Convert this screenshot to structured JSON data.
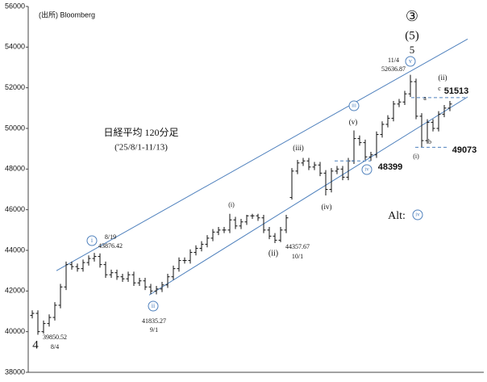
{
  "chart_data": {
    "type": "ohlc",
    "title": "日経平均 120分足",
    "subtitle": "('25/8/1-11/13)",
    "source": "(出所) Bloomberg",
    "color": "#111111",
    "channel_color": "#4f81bd",
    "level_color": "#1f3864",
    "ylim": [
      38000,
      56000
    ],
    "yticks": [
      38000,
      40000,
      42000,
      44000,
      46000,
      48000,
      50000,
      52000,
      54000,
      56000
    ],
    "open": [
      40800,
      40900,
      40000,
      40400,
      40700,
      41300,
      42200,
      43300,
      43200,
      43100,
      43400,
      43600,
      43700,
      43300,
      42800,
      42900,
      42700,
      42600,
      42800,
      42400,
      42500,
      42200,
      42000,
      42100,
      42300,
      42700,
      43100,
      43500,
      43500,
      43900,
      44100,
      44300,
      44600,
      44900,
      45000,
      45000,
      45500,
      45200,
      45400,
      45700,
      45700,
      45600,
      45000,
      44700,
      44500,
      45000,
      46600,
      47900,
      48300,
      48400,
      48100,
      48200,
      47800,
      47000,
      47900,
      48000,
      47600,
      48400,
      49500,
      49300,
      48600,
      48700,
      49700,
      50200,
      50500,
      51200,
      51300,
      51700,
      52300,
      50600,
      49400,
      50300,
      50000,
      50700,
      51000
    ],
    "high": [
      41050,
      41050,
      40550,
      40850,
      41450,
      42350,
      43450,
      43450,
      43350,
      43550,
      43750,
      43876,
      43850,
      43450,
      43050,
      43050,
      42850,
      42950,
      42950,
      42650,
      42650,
      42350,
      42250,
      42450,
      42850,
      43250,
      43650,
      43650,
      44050,
      44250,
      44450,
      44750,
      45050,
      45150,
      45150,
      45800,
      45650,
      45550,
      45750,
      45800,
      45800,
      45750,
      45150,
      44850,
      45150,
      45750,
      48050,
      48450,
      48550,
      48550,
      48350,
      48350,
      47950,
      48050,
      48150,
      48150,
      48550,
      49900,
      49650,
      49450,
      48850,
      49850,
      50350,
      50650,
      51350,
      51450,
      51850,
      52636,
      52450,
      50750,
      50450,
      50450,
      50850,
      51150,
      51350
    ],
    "low": [
      40650,
      39850,
      39900,
      40250,
      40550,
      41150,
      42050,
      43050,
      42950,
      42950,
      43250,
      43450,
      43150,
      42650,
      42650,
      42550,
      42450,
      42450,
      42250,
      42250,
      42050,
      41850,
      41835,
      41950,
      42150,
      42550,
      42950,
      43350,
      43350,
      43750,
      43950,
      44150,
      44450,
      44750,
      44850,
      44850,
      45050,
      45050,
      45250,
      45550,
      45450,
      44850,
      44550,
      44357,
      44400,
      44850,
      46500,
      47750,
      48150,
      47950,
      47950,
      47650,
      46700,
      46850,
      47750,
      47450,
      47450,
      48250,
      49150,
      48450,
      48399,
      48550,
      49550,
      50050,
      50350,
      51050,
      51150,
      51550,
      50450,
      49073,
      49250,
      49850,
      49850,
      50550,
      50850
    ],
    "close": [
      40900,
      40000,
      40400,
      40700,
      41300,
      42200,
      43300,
      43200,
      43100,
      43400,
      43600,
      43700,
      43300,
      42800,
      42900,
      42700,
      42600,
      42800,
      42400,
      42500,
      42200,
      42000,
      42100,
      42300,
      42700,
      43100,
      43500,
      43500,
      43900,
      44100,
      44300,
      44600,
      44900,
      45000,
      45000,
      45500,
      45200,
      45400,
      45700,
      45700,
      45600,
      45000,
      44700,
      44500,
      45000,
      45600,
      47900,
      48300,
      48400,
      48100,
      48200,
      47800,
      47000,
      47900,
      48000,
      47600,
      48400,
      49500,
      49300,
      48600,
      48700,
      49700,
      50200,
      50500,
      51200,
      51300,
      51700,
      52300,
      50600,
      49400,
      50300,
      50000,
      50700,
      51000,
      51200
    ],
    "channel": {
      "upper": [
        43000,
        54400
      ],
      "lower": [
        41800,
        51550
      ]
    },
    "levels": [
      51513,
      49073,
      48399
    ],
    "annotations": [
      "③",
      "(5)",
      "5",
      "11/4",
      "52636.87",
      "v",
      "(ii)",
      "c",
      "a",
      "b",
      "(i)",
      "iii",
      "(v)",
      "(iii)",
      "iv",
      "(iv)",
      "Alt:",
      "iv",
      "(i)",
      "(ii)",
      "44357.67",
      "10/1",
      "i",
      "8/19",
      "43876.42",
      "ii",
      "41835.27",
      "9/1",
      "39850.52",
      "8/4",
      "4"
    ]
  }
}
